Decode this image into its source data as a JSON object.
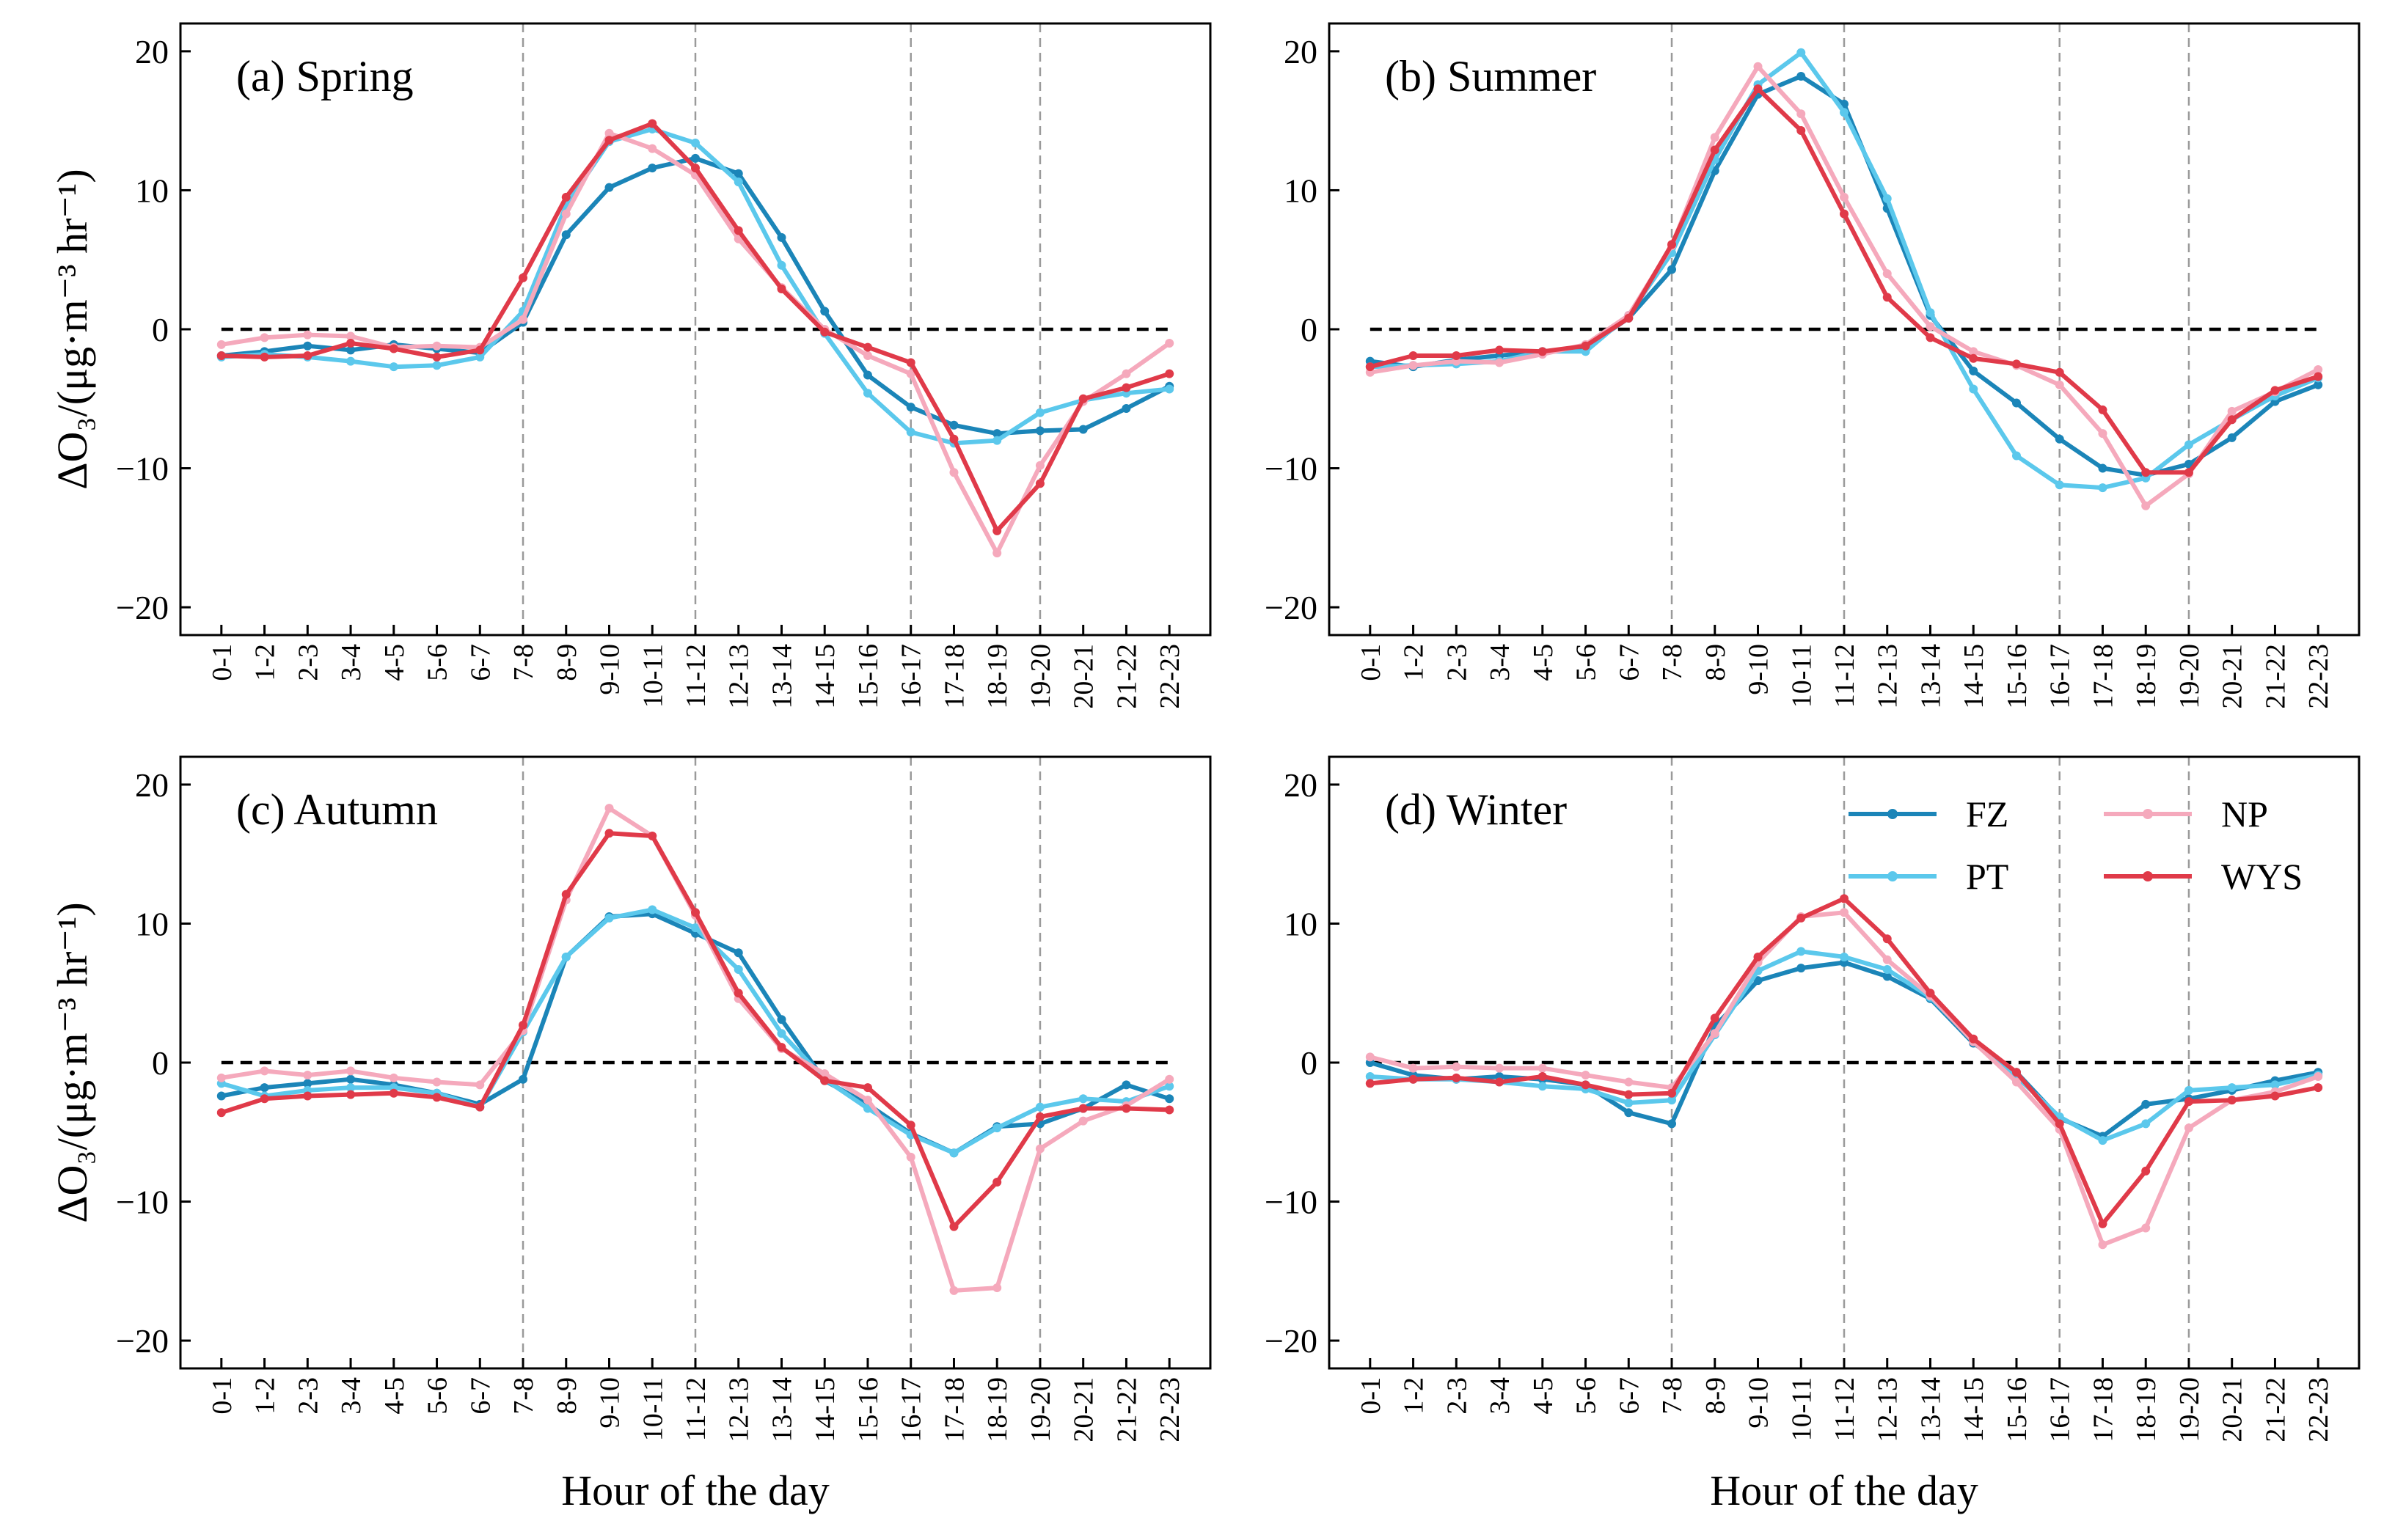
{
  "chart_data": {
    "type": "line",
    "ylabel": "ΔO₃/(μg·m⁻³ hr⁻¹)",
    "xlabel": "Hour of the day",
    "ylim": [
      -22,
      22
    ],
    "yticks": [
      -20,
      -10,
      0,
      10,
      20
    ],
    "categories": [
      "0-1",
      "1-2",
      "2-3",
      "3-4",
      "4-5",
      "5-6",
      "6-7",
      "7-8",
      "8-9",
      "9-10",
      "10-11",
      "11-12",
      "12-13",
      "13-14",
      "14-15",
      "15-16",
      "16-17",
      "17-18",
      "18-19",
      "19-20",
      "20-21",
      "21-22",
      "22-23"
    ],
    "legend": [
      {
        "name": "FZ",
        "color": "#1b85b8"
      },
      {
        "name": "PT",
        "color": "#5bc8ec"
      },
      {
        "name": "NP",
        "color": "#f5a9bc"
      },
      {
        "name": "WYS",
        "color": "#e03a49"
      }
    ],
    "panels": [
      {
        "title": "(a) Spring",
        "vlines": [
          "7-8",
          "11-12",
          "16-17",
          "19-20"
        ],
        "series": [
          {
            "name": "FZ",
            "values": [
              -1.9,
              -1.6,
              -1.2,
              -1.5,
              -1.1,
              -1.4,
              -1.7,
              0.5,
              6.8,
              10.2,
              11.6,
              12.3,
              11.2,
              6.6,
              1.3,
              -3.3,
              -5.6,
              -6.9,
              -7.5,
              -7.3,
              -7.2,
              -5.7,
              -4.1
            ]
          },
          {
            "name": "PT",
            "values": [
              -2.0,
              -1.8,
              -2.0,
              -2.3,
              -2.7,
              -2.6,
              -2.0,
              1.3,
              8.9,
              13.5,
              14.4,
              13.4,
              10.6,
              4.6,
              -0.3,
              -4.6,
              -7.4,
              -8.2,
              -8.0,
              -6.0,
              -5.1,
              -4.6,
              -4.3
            ]
          },
          {
            "name": "NP",
            "values": [
              -1.1,
              -0.6,
              -0.4,
              -0.5,
              -1.3,
              -1.2,
              -1.3,
              0.7,
              8.3,
              14.1,
              13.0,
              11.1,
              6.5,
              3.0,
              0.0,
              -1.9,
              -3.2,
              -10.3,
              -16.1,
              -9.8,
              -5.2,
              -3.2,
              -1.0
            ]
          },
          {
            "name": "WYS",
            "values": [
              -1.9,
              -2.0,
              -1.9,
              -1.0,
              -1.4,
              -2.0,
              -1.5,
              3.7,
              9.5,
              13.6,
              14.8,
              11.6,
              7.1,
              2.9,
              -0.2,
              -1.3,
              -2.4,
              -7.9,
              -14.5,
              -11.1,
              -5.0,
              -4.2,
              -3.2
            ]
          }
        ]
      },
      {
        "title": "(b) Summer",
        "vlines": [
          "7-8",
          "11-12",
          "16-17",
          "19-20"
        ],
        "series": [
          {
            "name": "FZ",
            "values": [
              -2.3,
              -2.7,
              -2.2,
              -1.9,
              -1.6,
              -1.3,
              0.8,
              4.3,
              11.4,
              16.9,
              18.2,
              16.2,
              8.7,
              1.0,
              -3.0,
              -5.3,
              -7.9,
              -10.0,
              -10.5,
              -9.7,
              -7.8,
              -5.2,
              -4.0
            ]
          },
          {
            "name": "PT",
            "values": [
              -2.7,
              -2.6,
              -2.5,
              -2.3,
              -1.6,
              -1.6,
              1.0,
              5.5,
              12.2,
              17.6,
              19.9,
              15.6,
              9.4,
              1.2,
              -4.3,
              -9.1,
              -11.2,
              -11.4,
              -10.7,
              -8.3,
              -6.5,
              -4.8,
              -3.5
            ]
          },
          {
            "name": "NP",
            "values": [
              -3.1,
              -2.6,
              -2.3,
              -2.4,
              -1.8,
              -1.1,
              1.0,
              6.0,
              13.8,
              18.9,
              15.5,
              9.5,
              4.0,
              0.2,
              -1.6,
              -2.6,
              -4.0,
              -7.5,
              -12.7,
              -10.4,
              -5.9,
              -4.5,
              -2.9
            ]
          },
          {
            "name": "WYS",
            "values": [
              -2.7,
              -1.9,
              -1.9,
              -1.5,
              -1.6,
              -1.2,
              0.8,
              6.1,
              12.9,
              17.3,
              14.3,
              8.3,
              2.3,
              -0.6,
              -2.1,
              -2.5,
              -3.1,
              -5.8,
              -10.3,
              -10.3,
              -6.5,
              -4.4,
              -3.4
            ]
          }
        ]
      },
      {
        "title": "(c) Autumn",
        "vlines": [
          "7-8",
          "11-12",
          "16-17",
          "19-20"
        ],
        "series": [
          {
            "name": "FZ",
            "values": [
              -2.4,
              -1.8,
              -1.5,
              -1.2,
              -1.6,
              -2.2,
              -3.0,
              -1.2,
              7.6,
              10.5,
              10.7,
              9.3,
              7.9,
              3.1,
              -1.3,
              -3.0,
              -5.1,
              -6.5,
              -4.6,
              -4.4,
              -3.3,
              -1.6,
              -2.6
            ]
          },
          {
            "name": "PT",
            "values": [
              -1.5,
              -2.4,
              -2.0,
              -1.8,
              -1.8,
              -2.2,
              -3.2,
              2.2,
              7.6,
              10.4,
              11.0,
              9.7,
              6.7,
              2.1,
              -1.2,
              -3.3,
              -5.2,
              -6.5,
              -4.7,
              -3.2,
              -2.6,
              -2.8,
              -1.7
            ]
          },
          {
            "name": "NP",
            "values": [
              -1.1,
              -0.6,
              -0.9,
              -0.6,
              -1.1,
              -1.4,
              -1.6,
              2.3,
              11.7,
              18.3,
              16.3,
              10.6,
              4.6,
              1.0,
              -0.8,
              -2.7,
              -6.8,
              -16.4,
              -16.2,
              -6.2,
              -4.2,
              -3.1,
              -1.2
            ]
          },
          {
            "name": "WYS",
            "values": [
              -3.6,
              -2.6,
              -2.4,
              -2.3,
              -2.2,
              -2.5,
              -3.2,
              2.7,
              12.1,
              16.5,
              16.3,
              10.8,
              5.0,
              1.1,
              -1.3,
              -1.8,
              -4.5,
              -11.8,
              -8.6,
              -3.9,
              -3.3,
              -3.3,
              -3.4
            ]
          }
        ]
      },
      {
        "title": "(d) Winter",
        "vlines": [
          "7-8",
          "11-12",
          "16-17",
          "19-20"
        ],
        "series": [
          {
            "name": "FZ",
            "values": [
              0.0,
              -0.9,
              -1.2,
              -1.0,
              -1.2,
              -1.6,
              -3.6,
              -4.4,
              2.6,
              5.9,
              6.8,
              7.2,
              6.2,
              4.6,
              1.4,
              -0.7,
              -4.0,
              -5.3,
              -3.0,
              -2.6,
              -2.0,
              -1.3,
              -0.7
            ]
          },
          {
            "name": "PT",
            "values": [
              -1.0,
              -1.2,
              -1.2,
              -1.4,
              -1.7,
              -1.9,
              -2.9,
              -2.7,
              2.0,
              6.6,
              8.0,
              7.6,
              6.7,
              4.7,
              1.6,
              -1.0,
              -3.9,
              -5.6,
              -4.4,
              -2.0,
              -1.8,
              -1.6,
              -0.9
            ]
          },
          {
            "name": "NP",
            "values": [
              0.4,
              -0.4,
              -0.3,
              -0.4,
              -0.4,
              -0.9,
              -1.4,
              -1.8,
              2.1,
              7.2,
              10.5,
              10.8,
              7.4,
              4.8,
              1.5,
              -1.4,
              -4.8,
              -13.1,
              -11.9,
              -4.7,
              -2.7,
              -2.1,
              -1.0
            ]
          },
          {
            "name": "WYS",
            "values": [
              -1.5,
              -1.2,
              -1.1,
              -1.4,
              -1.0,
              -1.6,
              -2.3,
              -2.2,
              3.2,
              7.6,
              10.4,
              11.8,
              8.9,
              5.0,
              1.7,
              -0.7,
              -4.4,
              -11.6,
              -7.8,
              -2.8,
              -2.7,
              -2.4,
              -1.8
            ]
          }
        ]
      }
    ]
  }
}
